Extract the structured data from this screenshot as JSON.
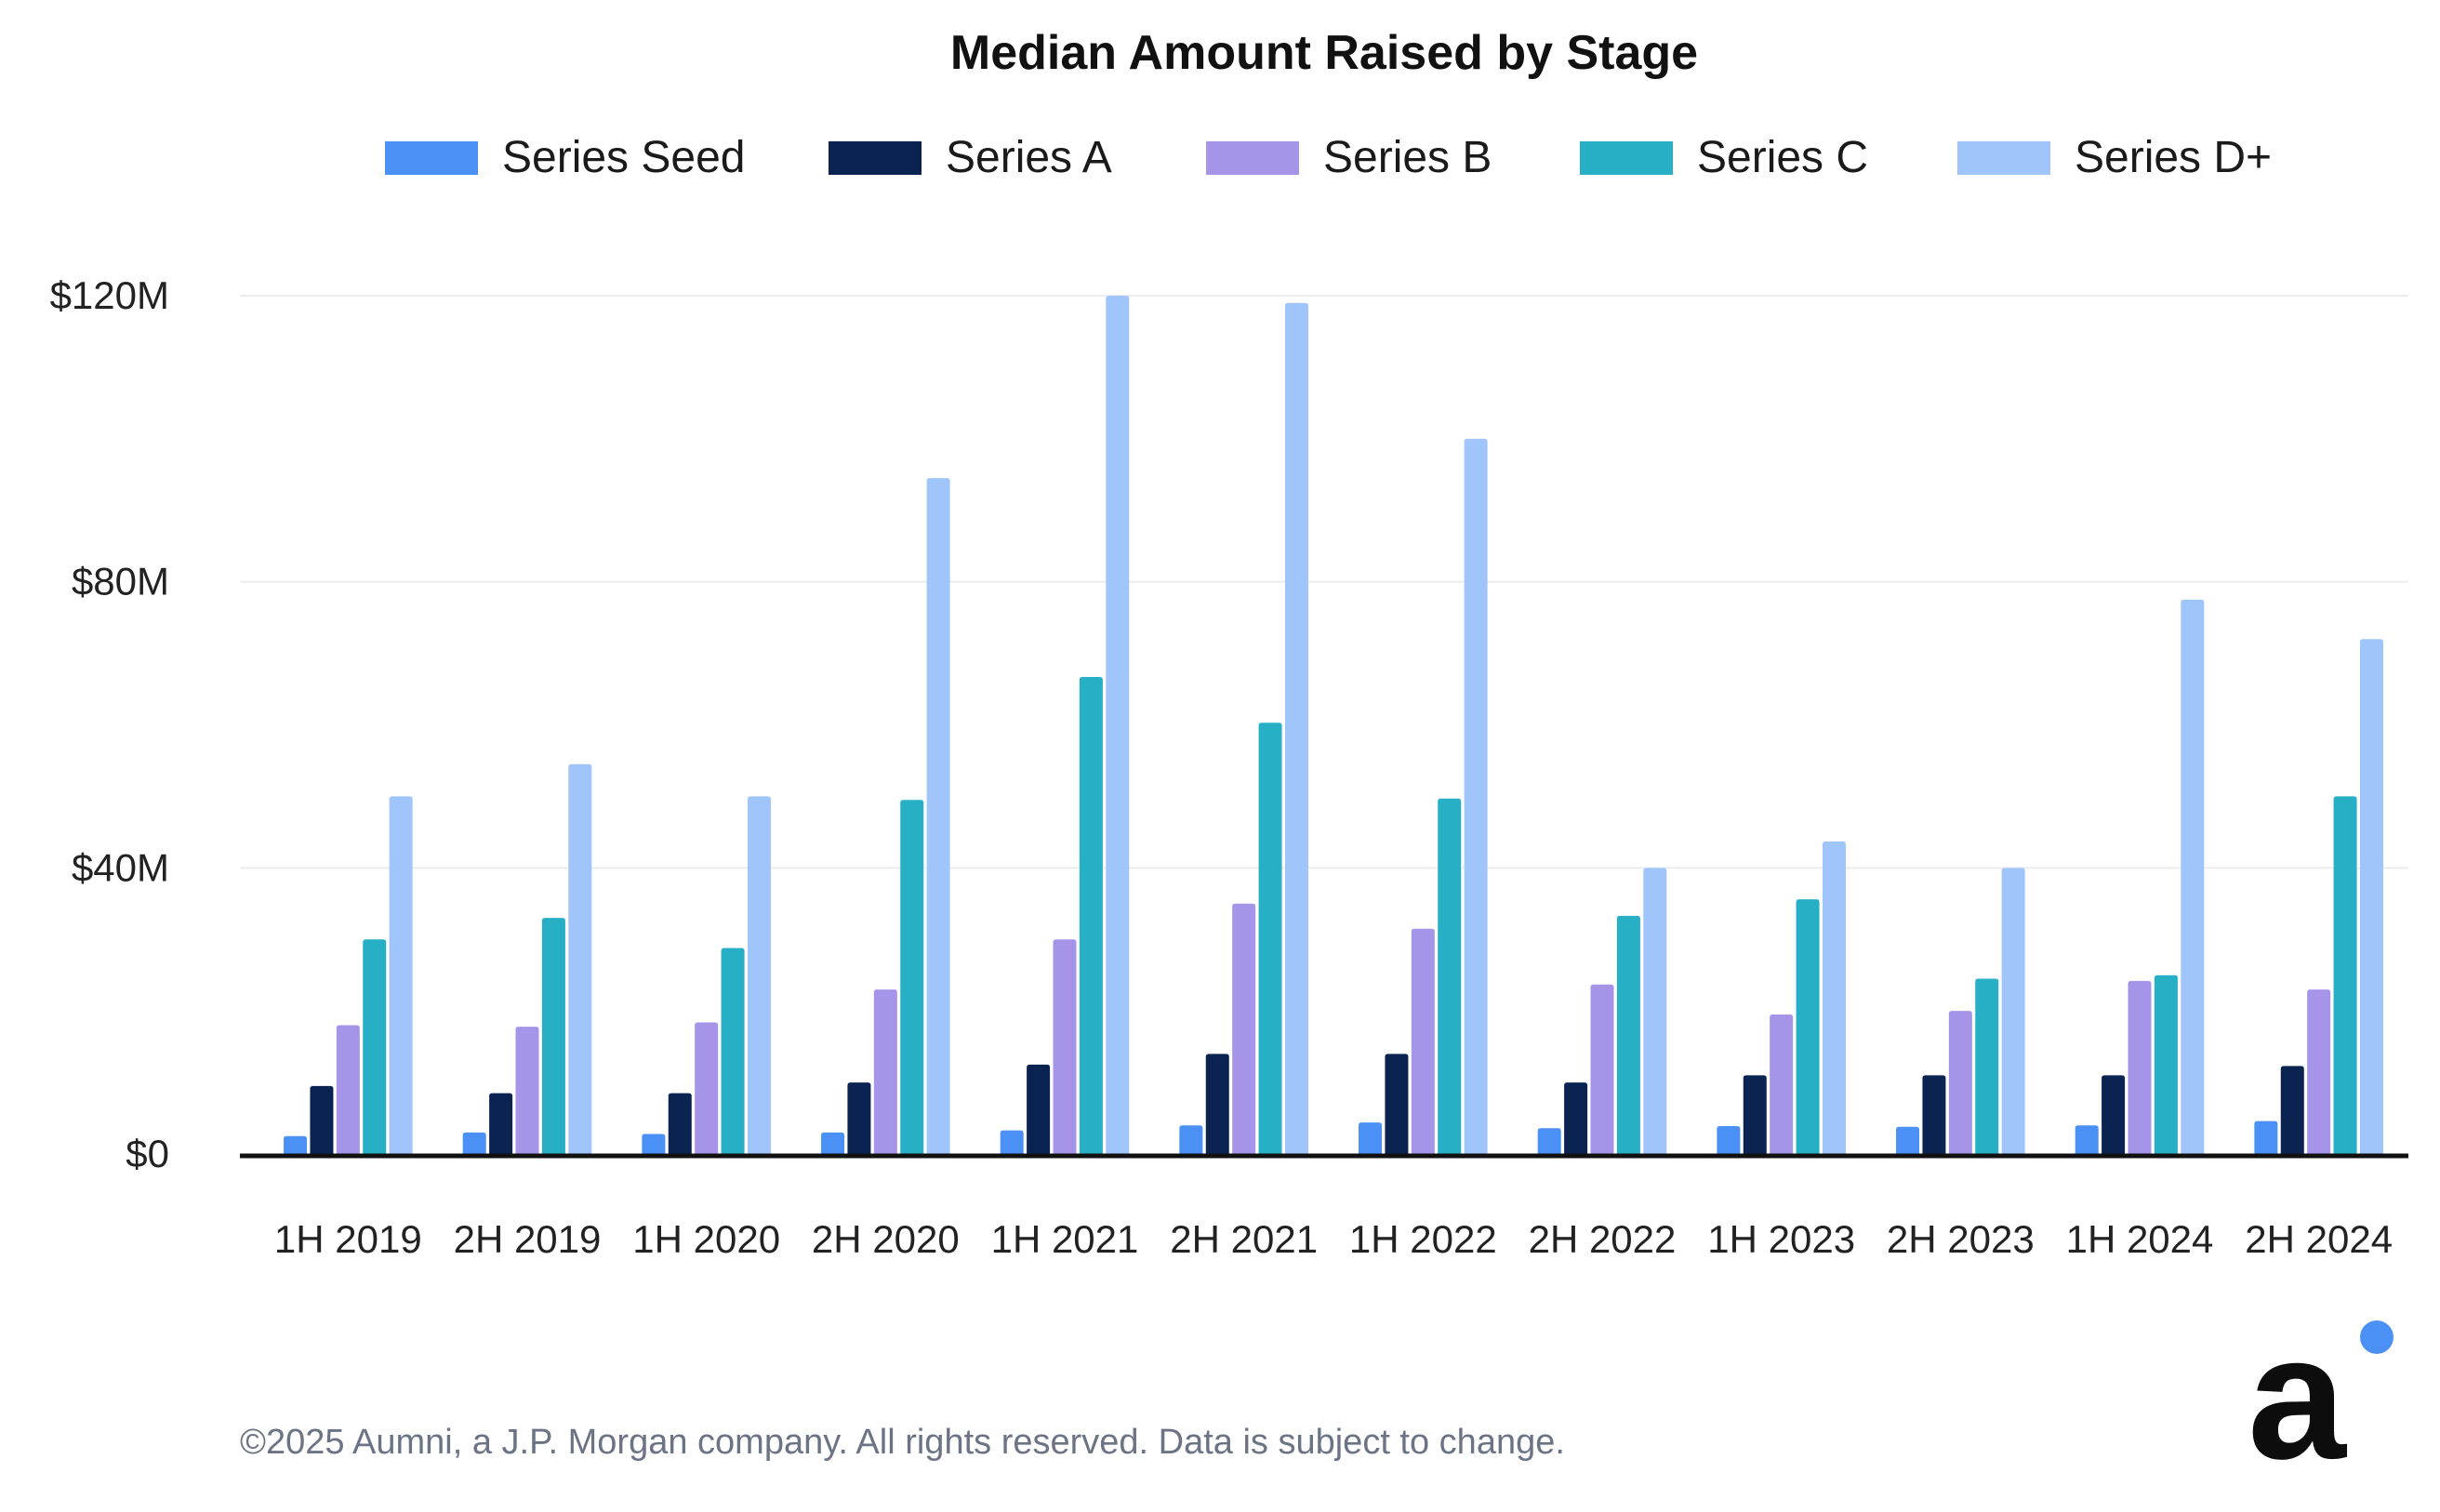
{
  "chart_data": {
    "type": "bar",
    "title": "Median Amount Raised by Stage",
    "xlabel": "",
    "ylabel": "",
    "categories": [
      "1H 2019",
      "2H 2019",
      "1H 2020",
      "2H 2020",
      "1H 2021",
      "2H 2021",
      "1H 2022",
      "2H 2022",
      "1H 2023",
      "2H 2023",
      "1H 2024",
      "2H 2024"
    ],
    "ylim": [
      0,
      120
    ],
    "yticks": [
      0,
      40,
      80,
      120
    ],
    "ytick_labels": [
      "$0",
      "$40M",
      "$80M",
      "$120M"
    ],
    "grid": true,
    "legend_position": "top",
    "series": [
      {
        "name": "Series Seed",
        "color": "#4A90F5",
        "values": [
          2.5,
          3,
          2.8,
          3,
          3.3,
          4,
          4.4,
          3.6,
          3.9,
          3.8,
          4,
          4.6
        ]
      },
      {
        "name": "Series A",
        "color": "#0B2350",
        "values": [
          9.5,
          8.5,
          8.5,
          10,
          12.5,
          14,
          14,
          10,
          11,
          11,
          11,
          12.3
        ]
      },
      {
        "name": "Series B",
        "color": "#A694E9",
        "values": [
          18,
          17.8,
          18.4,
          23,
          30,
          35,
          31.5,
          23.7,
          19.5,
          20,
          24.2,
          23
        ]
      },
      {
        "name": "Series C",
        "color": "#27AFC5",
        "values": [
          30,
          33,
          28.8,
          49.5,
          66.7,
          60.3,
          49.7,
          33.3,
          35.6,
          24.5,
          25,
          50
        ]
      },
      {
        "name": "Series D+",
        "color": "#9FC5FA",
        "values": [
          50,
          54.5,
          50,
          94.5,
          120,
          119,
          100,
          40,
          43.7,
          40,
          77.5,
          72
        ]
      }
    ]
  },
  "footer": {
    "copyright": "©2025 Aumni, a J.P. Morgan company. All rights reserved. Data is subject to change."
  },
  "logo": {
    "glyph": "a",
    "accent_color": "#4A90F5",
    "ink_color": "#0d0d0d"
  }
}
